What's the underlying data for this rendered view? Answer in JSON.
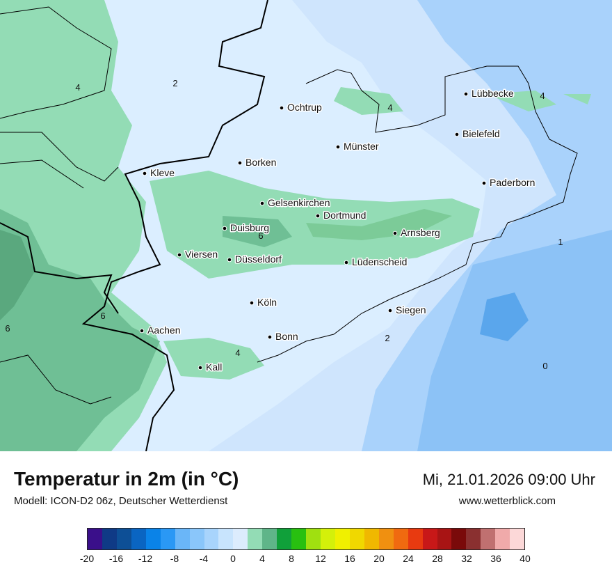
{
  "map": {
    "cities": [
      {
        "name": "Ochtrup"
      },
      {
        "name": "Lübbecke"
      },
      {
        "name": "Bielefeld"
      },
      {
        "name": "Münster"
      },
      {
        "name": "Borken"
      },
      {
        "name": "Kleve"
      },
      {
        "name": "Paderborn"
      },
      {
        "name": "Gelsenkirchen"
      },
      {
        "name": "Dortmund"
      },
      {
        "name": "Duisburg"
      },
      {
        "name": "Arnsberg"
      },
      {
        "name": "Viersen"
      },
      {
        "name": "Düsseldorf"
      },
      {
        "name": "Lüdenscheid"
      },
      {
        "name": "Köln"
      },
      {
        "name": "Siegen"
      },
      {
        "name": "Aachen"
      },
      {
        "name": "Bonn"
      },
      {
        "name": "Kall"
      }
    ],
    "isolines": [
      "4",
      "2",
      "4",
      "4",
      "6",
      "1",
      "6",
      "6",
      "2",
      "4",
      "0"
    ],
    "colors": {
      "cold": "#bcdcfc",
      "cool": "#d7ebff",
      "blue": "#8ec4f8",
      "deep": "#4a9ce8",
      "green": "#93dcb5",
      "darkgreen": "#5fb589",
      "olive": "#6fbf7f"
    }
  },
  "legend": {
    "title": "Temperatur in 2m (in °C)",
    "model": "Modell: ICON-D2 06z, Deutscher Wetterdienst",
    "datetime": "Mi, 21.01.2026 09:00 Uhr",
    "site": "www.wetterblick.com",
    "scale_colors": [
      "#3a0f8a",
      "#0f3a86",
      "#0d4f96",
      "#0a65c2",
      "#0a83e8",
      "#2a98f5",
      "#6ab6f8",
      "#8ac6fa",
      "#a8d4fc",
      "#c8e4fd",
      "#dcecfd",
      "#93dcb5",
      "#5fb589",
      "#10a03a",
      "#28c010",
      "#a0e010",
      "#d4f00a",
      "#f0f000",
      "#f0d800",
      "#f0b800",
      "#f09010",
      "#f06a10",
      "#e83a10",
      "#c81818",
      "#a81414",
      "#7a0a0a",
      "#8a3030",
      "#c07070",
      "#f0aaaa",
      "#fcd8d8"
    ],
    "ticks": [
      "-20",
      "-16",
      "-12",
      "-8",
      "-4",
      "0",
      "4",
      "8",
      "12",
      "16",
      "20",
      "24",
      "28",
      "32",
      "36",
      "40"
    ]
  }
}
